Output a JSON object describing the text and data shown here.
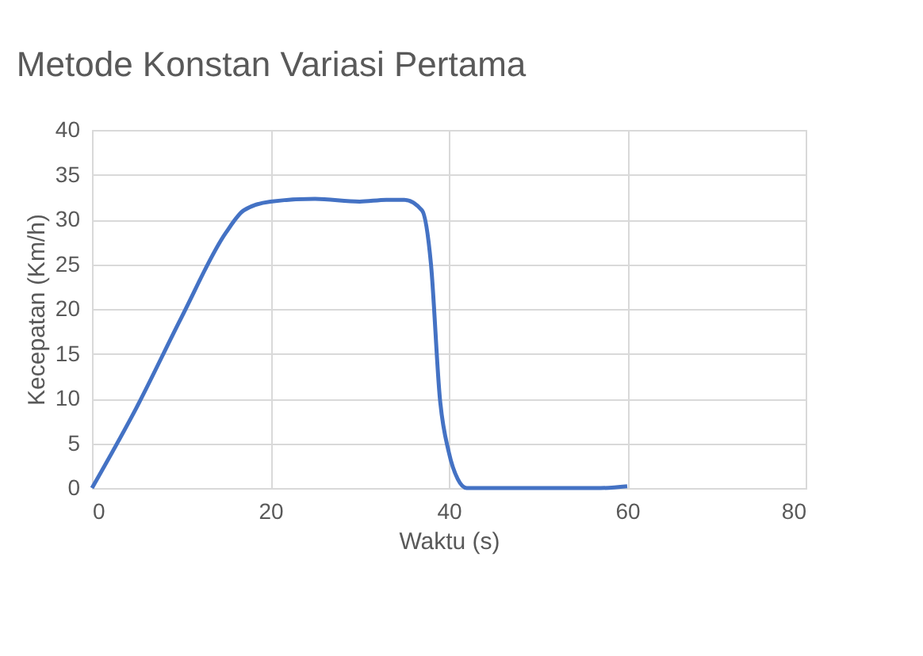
{
  "chart_data": {
    "type": "line",
    "title": "Metode Konstan Variasi Pertama",
    "xlabel": "Waktu (s)",
    "ylabel": "Kecepatan (Km/h)",
    "x": [
      0,
      5,
      10,
      15,
      17,
      20,
      25,
      30,
      33,
      35,
      37,
      38,
      39,
      40,
      41,
      42,
      45,
      50,
      55,
      57,
      60
    ],
    "series": [
      {
        "color": "#4472c4",
        "values": [
          0,
          9,
          19,
          28.5,
          31,
          32,
          32.3,
          32,
          32.2,
          32.2,
          31,
          25,
          10,
          4,
          1,
          0,
          0,
          0,
          0,
          0,
          0.2
        ]
      }
    ],
    "xlim": [
      0,
      80
    ],
    "xticks": [
      0,
      20,
      40,
      60,
      80
    ],
    "ylim": [
      0,
      40
    ],
    "yticks": [
      0,
      5,
      10,
      15,
      20,
      25,
      30,
      35,
      40
    ],
    "grid": true,
    "legend": false,
    "marker": "none",
    "line_style": "solid"
  }
}
